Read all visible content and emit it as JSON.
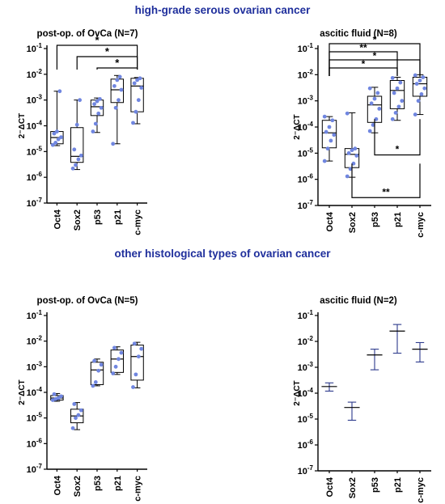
{
  "figure": {
    "section_titles": [
      "high-grade serous ovarian cancer",
      "other histological types of ovarian cancer"
    ],
    "title_color": "#1f2f9c",
    "point_color": "#7086e0",
    "axis_color": "#000000"
  },
  "chart_data": [
    {
      "type": "box",
      "title": "post-op. of OvCa (N=7)",
      "ylabel": "2^-ΔCT",
      "yscale": "log",
      "ylim": [
        1e-07,
        0.1
      ],
      "yticks": [
        "10^-1",
        "10^-2",
        "10^-3",
        "10^-4",
        "10^-5",
        "10^-6",
        "10^-7"
      ],
      "categories": [
        "Oct4",
        "Sox2",
        "p53",
        "p21",
        "c-myc"
      ],
      "style": "box",
      "boxes": [
        {
          "min": 1.7e-05,
          "q1": 2e-05,
          "median": 3.5e-05,
          "q3": 6e-05,
          "max": 0.0022,
          "points": [
            1.8e-05,
            2.2e-05,
            3e-05,
            3.6e-05,
            5e-05,
            6e-05,
            0.0022
          ]
        },
        {
          "min": 2e-06,
          "q1": 3.8e-06,
          "median": 6.5e-06,
          "q3": 8.5e-05,
          "max": 0.001,
          "points": [
            2.2e-06,
            3e-06,
            5e-06,
            7e-06,
            1.2e-05,
            0.00011,
            0.001
          ]
        },
        {
          "min": 5.5e-05,
          "q1": 0.00025,
          "median": 0.00055,
          "q3": 0.001,
          "max": 0.0012,
          "points": [
            6e-05,
            0.00012,
            0.0003,
            0.0005,
            0.0007,
            0.0009,
            0.0011
          ]
        },
        {
          "min": 2e-05,
          "q1": 0.0008,
          "median": 0.0025,
          "q3": 0.0065,
          "max": 0.009,
          "points": [
            2e-05,
            0.0005,
            0.001,
            0.0025,
            0.0035,
            0.006,
            0.008
          ]
        },
        {
          "min": 0.00012,
          "q1": 0.00035,
          "median": 0.0035,
          "q3": 0.007,
          "max": 0.0075,
          "points": [
            0.00013,
            0.00035,
            0.001,
            0.003,
            0.0045,
            0.006,
            0.007
          ]
        }
      ],
      "significance": [
        {
          "from": "Oct4",
          "to": "c-myc",
          "label": "*"
        },
        {
          "from": "Sox2",
          "to": "c-myc",
          "label": "*"
        },
        {
          "from": "p53",
          "to": "c-myc",
          "label": "*"
        }
      ]
    },
    {
      "type": "box",
      "title": "ascitic fluid (N=8)",
      "ylabel": "2^-ΔCT",
      "yscale": "log",
      "ylim": [
        1e-07,
        0.1
      ],
      "yticks": [
        "10^-1",
        "10^-2",
        "10^-3",
        "10^-4",
        "10^-5",
        "10^-6",
        "10^-7"
      ],
      "categories": [
        "Oct4",
        "Sox2",
        "p53",
        "p21",
        "c-myc"
      ],
      "style": "box",
      "boxes": [
        {
          "min": 5e-06,
          "q1": 1.6e-05,
          "median": 6e-05,
          "q3": 0.00018,
          "max": 0.00025,
          "points": [
            5e-06,
            1.5e-05,
            3e-05,
            5e-05,
            6.5e-05,
            0.0001,
            0.00018,
            0.00025
          ]
        },
        {
          "min": 1.2e-06,
          "q1": 2.8e-06,
          "median": 9e-06,
          "q3": 1.5e-05,
          "max": 0.00035,
          "points": [
            1.3e-06,
            2.5e-06,
            4e-06,
            8e-06,
            1e-05,
            1.3e-05,
            1.5e-05,
            0.00033
          ]
        },
        {
          "min": 6e-05,
          "q1": 0.00015,
          "median": 0.0007,
          "q3": 0.0015,
          "max": 0.0033,
          "points": [
            7e-05,
            0.00012,
            0.0002,
            0.0005,
            0.0008,
            0.0012,
            0.002,
            0.003
          ]
        },
        {
          "min": 0.00018,
          "q1": 0.0005,
          "median": 0.0025,
          "q3": 0.006,
          "max": 0.008,
          "points": [
            0.0002,
            0.00035,
            0.0006,
            0.001,
            0.002,
            0.003,
            0.005,
            0.0075
          ]
        },
        {
          "min": 0.0003,
          "q1": 0.0015,
          "median": 0.0045,
          "q3": 0.008,
          "max": 0.01,
          "points": [
            0.0003,
            0.001,
            0.0018,
            0.003,
            0.0045,
            0.006,
            0.008,
            0.0095
          ]
        }
      ],
      "significance": [
        {
          "from": "Oct4",
          "to": "c-myc",
          "label": "*"
        },
        {
          "from": "Oct4",
          "to": "p21",
          "label": "**"
        },
        {
          "from": "Oct4",
          "to": "c-myc",
          "label": "*"
        },
        {
          "from": "Oct4",
          "to": "p21",
          "label": "*"
        },
        {
          "from": "p53",
          "to": "c-myc",
          "label": "*",
          "position": "below"
        },
        {
          "from": "Sox2",
          "to": "c-myc",
          "label": "**",
          "position": "below"
        }
      ]
    },
    {
      "type": "box",
      "title": "post-op. of OvCa (N=5)",
      "ylabel": "2^-ΔCT",
      "yscale": "log",
      "ylim": [
        1e-07,
        0.1
      ],
      "yticks": [
        "10^-1",
        "10^-2",
        "10^-3",
        "10^-4",
        "10^-5",
        "10^-6",
        "10^-7"
      ],
      "categories": [
        "Oct4",
        "Sox2",
        "p53",
        "p21",
        "c-myc"
      ],
      "style": "box",
      "boxes": [
        {
          "min": 4.5e-05,
          "q1": 5e-05,
          "median": 6e-05,
          "q3": 7.5e-05,
          "max": 9e-05,
          "points": [
            5e-05,
            5.5e-05,
            6e-05,
            7e-05,
            8.5e-05
          ]
        },
        {
          "min": 3.5e-06,
          "q1": 6.5e-06,
          "median": 1.2e-05,
          "q3": 2.2e-05,
          "max": 4e-05,
          "points": [
            4e-06,
            1e-05,
            1.3e-05,
            2e-05,
            3.5e-05
          ]
        },
        {
          "min": 0.00018,
          "q1": 0.0002,
          "median": 0.00075,
          "q3": 0.0015,
          "max": 0.002,
          "points": [
            0.00018,
            0.00025,
            0.0007,
            0.0012,
            0.0017
          ]
        },
        {
          "min": 0.0005,
          "q1": 0.0006,
          "median": 0.002,
          "q3": 0.0045,
          "max": 0.006,
          "points": [
            0.00055,
            0.001,
            0.002,
            0.0035,
            0.0055
          ]
        },
        {
          "min": 0.00015,
          "q1": 0.0003,
          "median": 0.0025,
          "q3": 0.007,
          "max": 0.009,
          "points": [
            0.00016,
            0.0005,
            0.0025,
            0.005,
            0.008
          ]
        }
      ]
    },
    {
      "type": "errorbar",
      "title": "ascitic fluid (N=2)",
      "ylabel": "2^-ΔCT",
      "yscale": "log",
      "ylim": [
        1e-07,
        0.1
      ],
      "yticks": [
        "10^-1",
        "10^-2",
        "10^-3",
        "10^-4",
        "10^-5",
        "10^-6",
        "10^-7"
      ],
      "categories": [
        "Oct4",
        "Sox2",
        "p53",
        "p21",
        "c-myc"
      ],
      "style": "mean_range",
      "boxes": [
        {
          "min": 0.00012,
          "median": 0.00018,
          "max": 0.00025
        },
        {
          "min": 9e-06,
          "median": 2.8e-05,
          "max": 4.5e-05
        },
        {
          "min": 0.0008,
          "median": 0.003,
          "max": 0.005
        },
        {
          "min": 0.0035,
          "median": 0.025,
          "max": 0.045
        },
        {
          "min": 0.0016,
          "median": 0.005,
          "max": 0.009
        }
      ]
    }
  ]
}
